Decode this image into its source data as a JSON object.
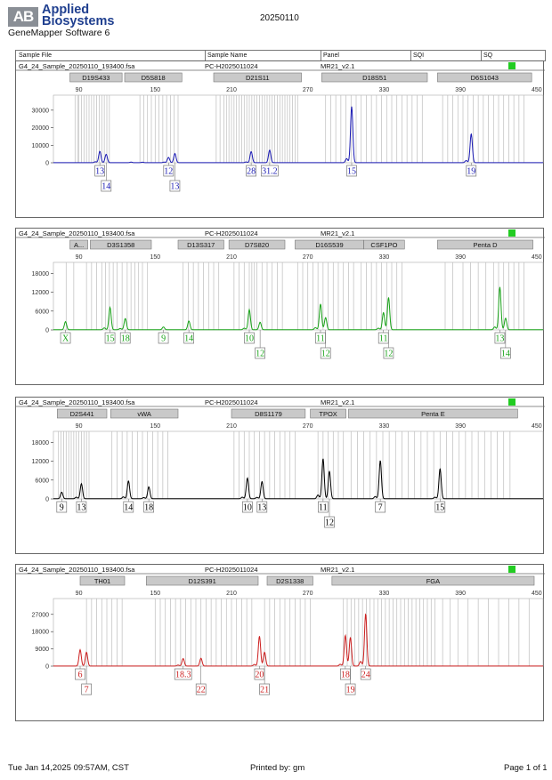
{
  "header": {
    "logo_mark": "AB",
    "brand_line1": "Applied",
    "brand_line2": "Biosystems",
    "software": "GeneMapper Software 6",
    "date": "20250110"
  },
  "table_header": {
    "sample_file": "Sample File",
    "sample_name": "Sample Name",
    "panel": "Panel",
    "sqi": "SQI",
    "sq": "SQ"
  },
  "footer": {
    "left": "Tue Jan 14,2025 09:57AM, CST",
    "center": "Printed by: gm",
    "right": "Page 1 of 1"
  },
  "colors": {
    "blue": "#1a1ab4",
    "green": "#19a319",
    "black": "#000000",
    "red": "#cc1f1f",
    "sq_ok": "#22cc22"
  },
  "chart_data": [
    {
      "type": "line",
      "dye": "blue",
      "color": "#1a1ab4",
      "sample_file": "G4_24_Sample_20250110_193400.fsa",
      "sample_name": "PC-H2025011024",
      "panel": "MR21_v2.1",
      "xticks": [
        90,
        150,
        210,
        270,
        330,
        390,
        450
      ],
      "xlim": [
        70,
        455
      ],
      "yticks": [
        0,
        10000,
        20000,
        30000
      ],
      "ylim": [
        0,
        35000
      ],
      "markers": [
        {
          "name": "D19S433",
          "start": 83,
          "end": 124
        },
        {
          "name": "D5S818",
          "start": 126,
          "end": 171
        },
        {
          "name": "D21S11",
          "start": 196,
          "end": 265
        },
        {
          "name": "D18S51",
          "start": 281,
          "end": 364
        },
        {
          "name": "D6S1043",
          "start": 372,
          "end": 446
        }
      ],
      "bins": [
        87,
        89,
        90,
        92,
        94,
        96,
        98,
        100,
        102,
        104,
        106,
        108,
        110,
        112,
        114,
        138,
        141,
        144,
        147,
        150,
        153,
        156,
        159,
        162,
        165,
        168,
        198,
        201,
        204,
        206,
        208,
        210,
        212,
        214,
        216,
        218,
        220,
        222,
        224,
        226,
        228,
        230,
        232,
        234,
        236,
        238,
        240,
        242,
        244,
        246,
        248,
        250,
        252,
        254,
        256,
        258,
        260,
        262,
        284,
        288,
        292,
        296,
        300,
        304,
        308,
        312,
        316,
        320,
        324,
        328,
        332,
        336,
        340,
        344,
        348,
        352,
        356,
        360,
        376,
        380,
        384,
        388,
        392,
        396,
        400,
        404,
        408,
        412,
        416,
        420,
        424,
        428,
        432,
        436,
        440
      ],
      "peaks": [
        {
          "x": 106.5,
          "h": 6500,
          "label": "13",
          "row": 1
        },
        {
          "x": 111.5,
          "h": 4800,
          "label": "14",
          "row": 2
        },
        {
          "x": 160.5,
          "h": 3000,
          "label": "12",
          "row": 1
        },
        {
          "x": 165.5,
          "h": 5200,
          "label": "13",
          "row": 2
        },
        {
          "x": 225.5,
          "h": 6300,
          "label": "28",
          "row": 1
        },
        {
          "x": 240,
          "h": 7200,
          "label": "31.2",
          "row": 1
        },
        {
          "x": 304.5,
          "h": 32000,
          "label": "15",
          "row": 1
        },
        {
          "x": 398.5,
          "h": 16500,
          "label": "19",
          "row": 1
        }
      ],
      "stutters": [
        {
          "x": 103,
          "h": 500
        },
        {
          "x": 157,
          "h": 300
        },
        {
          "x": 221.5,
          "h": 400
        },
        {
          "x": 300.5,
          "h": 2300
        },
        {
          "x": 394.5,
          "h": 1200
        },
        {
          "x": 131,
          "h": 300
        },
        {
          "x": 140,
          "h": 250
        }
      ]
    },
    {
      "type": "line",
      "dye": "green",
      "color": "#19a319",
      "sample_file": "G4_24_Sample_20250110_193400.fsa",
      "sample_name": "PC-H2025011024",
      "panel": "MR21_v2.1",
      "xticks": [
        90,
        150,
        210,
        270,
        330,
        390,
        450
      ],
      "xlim": [
        70,
        455
      ],
      "yticks": [
        0,
        6000,
        12000,
        18000
      ],
      "ylim": [
        0,
        19500
      ],
      "markers": [
        {
          "name": "A...",
          "start": 83,
          "end": 97
        },
        {
          "name": "D3S1358",
          "start": 99,
          "end": 147
        },
        {
          "name": "D13S317",
          "start": 168,
          "end": 204
        },
        {
          "name": "D7S820",
          "start": 208,
          "end": 252
        },
        {
          "name": "D16S539",
          "start": 260,
          "end": 314
        },
        {
          "name": "CSF1PO",
          "start": 314,
          "end": 346
        },
        {
          "name": "Penta D",
          "start": 372,
          "end": 447
        }
      ],
      "bins": [
        80,
        86,
        96,
        100,
        104,
        108,
        111,
        114,
        117,
        120,
        124,
        128,
        131,
        134,
        137,
        140,
        144,
        172,
        176,
        180,
        184,
        188,
        192,
        196,
        200,
        212,
        216,
        220,
        224,
        226,
        228,
        230,
        234,
        238,
        242,
        246,
        250,
        262,
        266,
        270,
        274,
        278,
        282,
        286,
        290,
        294,
        298,
        302,
        306,
        312,
        316,
        320,
        324,
        328,
        332,
        336,
        340,
        344,
        378,
        384,
        392,
        398,
        404,
        410,
        416,
        420,
        424,
        428,
        432,
        436,
        440
      ],
      "peaks": [
        {
          "x": 79.5,
          "h": 2600,
          "label": "X",
          "row": 1
        },
        {
          "x": 114.5,
          "h": 7100,
          "label": "15",
          "row": 1
        },
        {
          "x": 126.5,
          "h": 3600,
          "label": "18",
          "row": 1
        },
        {
          "x": 156.5,
          "h": 900,
          "label": "9",
          "row": 1
        },
        {
          "x": 176.5,
          "h": 2800,
          "label": "14",
          "row": 1
        },
        {
          "x": 224,
          "h": 6400,
          "label": "10",
          "row": 1
        },
        {
          "x": 232.5,
          "h": 2400,
          "label": "12",
          "row": 2
        },
        {
          "x": 280,
          "h": 8200,
          "label": "11",
          "row": 1
        },
        {
          "x": 284,
          "h": 3900,
          "label": "12",
          "row": 2
        },
        {
          "x": 329.5,
          "h": 5500,
          "label": "11",
          "row": 1
        },
        {
          "x": 333.5,
          "h": 10300,
          "label": "12",
          "row": 2
        },
        {
          "x": 421,
          "h": 13600,
          "label": "13",
          "row": 1
        },
        {
          "x": 425.5,
          "h": 3700,
          "label": "14",
          "row": 2
        }
      ],
      "stutters": [
        {
          "x": 110,
          "h": 600
        },
        {
          "x": 122.5,
          "h": 400
        },
        {
          "x": 220,
          "h": 500
        },
        {
          "x": 276,
          "h": 700
        },
        {
          "x": 325.5,
          "h": 500
        },
        {
          "x": 417,
          "h": 900
        }
      ]
    },
    {
      "type": "line",
      "dye": "black",
      "color": "#000000",
      "sample_file": "G4_24_Sample_20250110_193400.fsa",
      "sample_name": "PC-H2025011024",
      "panel": "MR21_v2.1",
      "xticks": [
        90,
        150,
        210,
        270,
        330,
        390,
        450
      ],
      "xlim": [
        70,
        455
      ],
      "yticks": [
        0,
        6000,
        12000,
        18000
      ],
      "ylim": [
        0,
        19500
      ],
      "markers": [
        {
          "name": "D2S441",
          "start": 73,
          "end": 112
        },
        {
          "name": "vWA",
          "start": 115,
          "end": 168
        },
        {
          "name": "D8S1179",
          "start": 210,
          "end": 268
        },
        {
          "name": "TPOX",
          "start": 272,
          "end": 300
        },
        {
          "name": "Penta E",
          "start": 302,
          "end": 435
        }
      ],
      "bins": [
        74,
        76,
        78,
        80,
        82,
        84,
        86,
        88,
        90,
        92,
        94,
        96,
        98,
        116,
        120,
        124,
        128,
        132,
        136,
        140,
        144,
        148,
        152,
        156,
        160,
        212,
        216,
        220,
        224,
        228,
        232,
        236,
        240,
        244,
        248,
        252,
        256,
        260,
        278,
        282,
        286,
        290,
        294,
        298,
        304,
        309,
        314,
        319,
        324,
        329,
        334,
        339,
        344,
        349,
        354,
        359,
        364,
        369,
        374,
        379,
        384,
        389,
        394,
        399,
        404,
        409,
        414,
        419,
        424,
        429
      ],
      "peaks": [
        {
          "x": 76.5,
          "h": 2100,
          "label": "9",
          "row": 1
        },
        {
          "x": 92,
          "h": 4800,
          "label": "13",
          "row": 1
        },
        {
          "x": 129,
          "h": 5700,
          "label": "14",
          "row": 1
        },
        {
          "x": 145,
          "h": 3800,
          "label": "18",
          "row": 1
        },
        {
          "x": 222.5,
          "h": 6600,
          "label": "10",
          "row": 1
        },
        {
          "x": 234,
          "h": 5500,
          "label": "13",
          "row": 1
        },
        {
          "x": 282,
          "h": 12800,
          "label": "11",
          "row": 1
        },
        {
          "x": 287,
          "h": 8800,
          "label": "12",
          "row": 2
        },
        {
          "x": 327,
          "h": 12200,
          "label": "7",
          "row": 1
        },
        {
          "x": 374,
          "h": 9600,
          "label": "15",
          "row": 1
        }
      ],
      "stutters": [
        {
          "x": 88,
          "h": 500
        },
        {
          "x": 125,
          "h": 600
        },
        {
          "x": 141,
          "h": 400
        },
        {
          "x": 218.5,
          "h": 500
        },
        {
          "x": 230,
          "h": 450
        },
        {
          "x": 278,
          "h": 1200
        },
        {
          "x": 323,
          "h": 700
        },
        {
          "x": 370,
          "h": 500
        }
      ]
    },
    {
      "type": "line",
      "dye": "red",
      "color": "#cc1f1f",
      "sample_file": "G4_24_Sample_20250110_193400.fsa",
      "sample_name": "PC-H2025011024",
      "panel": "MR21_v2.1",
      "xticks": [
        90,
        150,
        210,
        270,
        330,
        390,
        450
      ],
      "xlim": [
        70,
        455
      ],
      "yticks": [
        0,
        9000,
        18000,
        27000
      ],
      "ylim": [
        0,
        32000
      ],
      "markers": [
        {
          "name": "TH01",
          "start": 91,
          "end": 126
        },
        {
          "name": "D12S391",
          "start": 143,
          "end": 231
        },
        {
          "name": "D2S1338",
          "start": 238,
          "end": 274
        },
        {
          "name": "FGA",
          "start": 289,
          "end": 448
        }
      ],
      "bins": [
        96,
        100,
        104,
        108,
        112,
        116,
        120,
        124,
        150,
        154,
        158,
        162,
        166,
        170,
        174,
        178,
        182,
        186,
        190,
        194,
        198,
        202,
        206,
        210,
        214,
        218,
        222,
        226,
        236,
        240,
        244,
        248,
        252,
        256,
        260,
        264,
        268,
        272,
        298,
        301,
        304,
        307,
        310,
        313,
        316,
        319,
        322,
        325,
        328,
        331,
        334,
        337,
        340,
        343,
        346,
        349,
        352,
        355,
        358,
        361,
        364,
        367,
        370,
        376,
        382,
        388,
        396,
        404,
        412,
        420,
        428,
        436,
        444
      ],
      "peaks": [
        {
          "x": 91,
          "h": 8500,
          "label": "6",
          "row": 1
        },
        {
          "x": 96,
          "h": 7200,
          "label": "7",
          "row": 2
        },
        {
          "x": 172,
          "h": 3900,
          "label": "18.3",
          "row": 1
        },
        {
          "x": 186,
          "h": 4100,
          "label": "22",
          "row": 2
        },
        {
          "x": 232,
          "h": 15600,
          "label": "20",
          "row": 1
        },
        {
          "x": 236,
          "h": 7200,
          "label": "21",
          "row": 2
        },
        {
          "x": 299.5,
          "h": 16000,
          "label": "18",
          "row": 1
        },
        {
          "x": 303.5,
          "h": 15000,
          "label": "19",
          "row": 2
        },
        {
          "x": 315.5,
          "h": 27300,
          "label": "24",
          "row": 1
        }
      ],
      "stutters": [
        {
          "x": 168,
          "h": 500
        },
        {
          "x": 228,
          "h": 800
        },
        {
          "x": 295.5,
          "h": 900
        },
        {
          "x": 311.5,
          "h": 2400
        }
      ]
    }
  ]
}
